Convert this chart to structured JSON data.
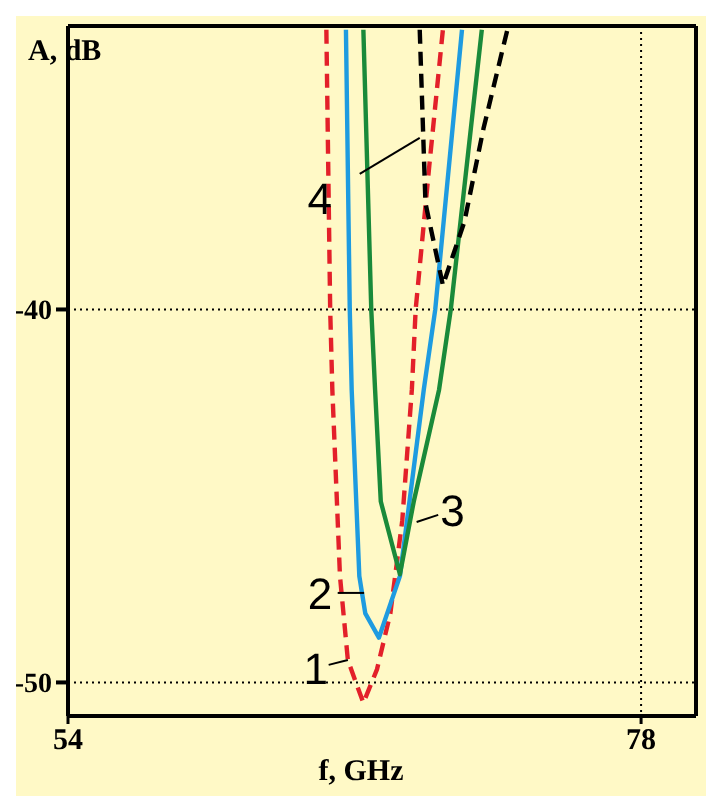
{
  "chart_data": {
    "type": "line",
    "xlabel": "f, GHz",
    "ylabel": "A, dB",
    "xlim": [
      54,
      80.3
    ],
    "ylim": [
      -50.9,
      -32.4
    ],
    "xticks": [
      54,
      78
    ],
    "yticks": [
      -40,
      -50
    ],
    "grid": true,
    "marker": "none",
    "series": [
      {
        "color": "#e3202a",
        "line_style": "dashed",
        "x": [
          64.82,
          64.98,
          65.07,
          65.39,
          65.72,
          66.37,
          66.94,
          67.5,
          68.0,
          68.4,
          68.56,
          69.13,
          69.7
        ],
        "values": [
          -32.5,
          -40,
          -42.15,
          -47.15,
          -49.4,
          -50.55,
          -49.65,
          -48.15,
          -45.65,
          -42.15,
          -40,
          -36.15,
          -32.5
        ]
      },
      {
        "color": "#1e9be0",
        "line_style": "solid",
        "x": [
          65.64,
          65.8,
          65.88,
          66.2,
          66.45,
          67.02,
          67.9,
          68.9,
          69.38,
          70.5
        ],
        "values": [
          -32.5,
          -40,
          -42.15,
          -47.15,
          -48.15,
          -48.8,
          -47.15,
          -42.15,
          -40,
          -32.5
        ]
      },
      {
        "color": "#1a8a3a",
        "line_style": "solid",
        "x": [
          66.37,
          66.7,
          66.86,
          67.1,
          67.9,
          68.48,
          69.54,
          70.03,
          71.33
        ],
        "values": [
          -32.5,
          -40,
          -42.15,
          -45.15,
          -47.1,
          -45.15,
          -42.15,
          -40,
          -32.5
        ]
      },
      {
        "color": "#000000",
        "line_style": "dashed",
        "x": [
          68.73,
          68.97,
          69.7,
          70.6,
          71.4,
          72.4
        ],
        "values": [
          -32.5,
          -37.15,
          -39.35,
          -37.65,
          -35.15,
          -32.5
        ]
      }
    ],
    "annotations": [
      {
        "text": "1",
        "x": 65.72,
        "y": -49.4
      },
      {
        "text": "2",
        "x": 66.4,
        "y": -47.6
      },
      {
        "text": "3",
        "x": 68.6,
        "y": -45.7
      },
      {
        "text": "4",
        "x": 68.73,
        "y": -35.4
      }
    ]
  }
}
